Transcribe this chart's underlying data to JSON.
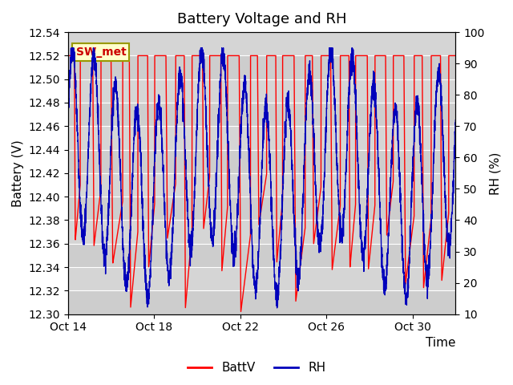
{
  "title": "Battery Voltage and RH",
  "xlabel": "Time",
  "ylabel_left": "Battery (V)",
  "ylabel_right": "RH (%)",
  "legend_label": "SW_met",
  "series_labels": [
    "BattV",
    "RH"
  ],
  "series_colors": [
    "#ff0000",
    "#0000bb"
  ],
  "ylim_left": [
    12.3,
    12.54
  ],
  "ylim_right": [
    10,
    100
  ],
  "yticks_left": [
    12.3,
    12.32,
    12.34,
    12.36,
    12.38,
    12.4,
    12.42,
    12.44,
    12.46,
    12.48,
    12.5,
    12.52,
    12.54
  ],
  "yticks_right": [
    10,
    20,
    30,
    40,
    50,
    60,
    70,
    80,
    90,
    100
  ],
  "xtick_labels": [
    "Oct 14",
    "Oct 18",
    "Oct 22",
    "Oct 26",
    "Oct 30"
  ],
  "xtick_positions": [
    0,
    4,
    8,
    12,
    16
  ],
  "fig_bg_color": "#ffffff",
  "plot_bg_color": "#d3d3d3",
  "grid_color": "#ffffff",
  "title_fontsize": 13,
  "axis_fontsize": 11,
  "tick_fontsize": 10,
  "legend_box_facecolor": "#ffffcc",
  "legend_box_edgecolor": "#999900",
  "sw_met_color": "#cc0000"
}
